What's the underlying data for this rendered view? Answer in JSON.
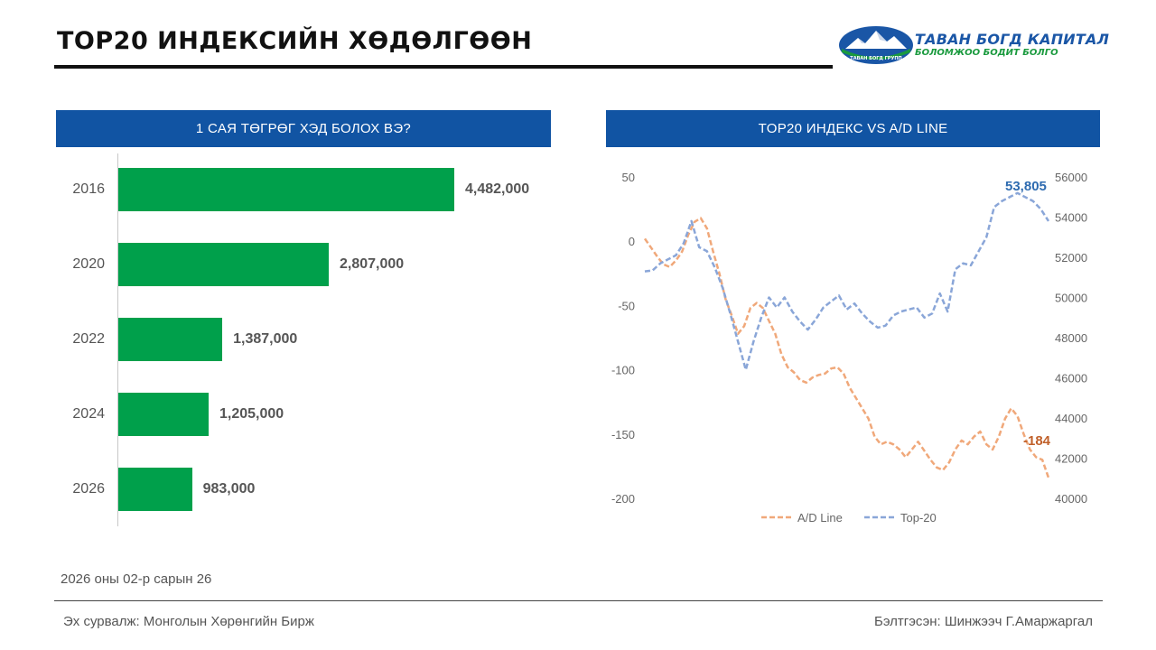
{
  "header": {
    "title": "TOP20 ИНДЕКСИЙН ХӨДӨЛГӨӨН",
    "logo_main": "ТАВАН БОГД КАПИТАЛ",
    "logo_sub": "БОЛОМЖОО БОДИТ БОЛГО",
    "logo_badge": "ТАВАН БОГД ГРУПП"
  },
  "colors": {
    "header_blue": "#1154a3",
    "bar_green": "#00a04b",
    "ad_line": "#f0a87a",
    "top20_line": "#8aa6d8",
    "ad_label": "#c0602a",
    "top20_label": "#2e6bb0"
  },
  "chart_data": [
    {
      "type": "bar",
      "orientation": "horizontal",
      "title": "1 САЯ ТӨГРӨГ ХЭД БОЛОХ ВЭ?",
      "categories": [
        "2016",
        "2020",
        "2022",
        "2024",
        "2026"
      ],
      "values": [
        4482000,
        2807000,
        1387000,
        1205000,
        983000
      ],
      "value_labels": [
        "4,482,000",
        "2,807,000",
        "1,387,000",
        "1,205,000",
        "983,000"
      ],
      "xlim": [
        0,
        4482000
      ]
    },
    {
      "type": "line",
      "title": "TOP20 ИНДЕКС VS A/D LINE",
      "left_axis": {
        "ylim": [
          -200,
          50
        ],
        "ticks": [
          "50",
          "0",
          "-50",
          "-100",
          "-150",
          "-200"
        ]
      },
      "right_axis": {
        "ylim": [
          40000,
          56000
        ],
        "ticks": [
          "56000",
          "54000",
          "52000",
          "50000",
          "48000",
          "46000",
          "44000",
          "42000",
          "40000"
        ]
      },
      "legend": "bottom",
      "series": [
        {
          "name": "A/D Line",
          "axis": "left",
          "style": "dashed",
          "end_label": "-184",
          "values": [
            2,
            -5,
            -12,
            -18,
            -20,
            -15,
            -8,
            5,
            15,
            18,
            10,
            -8,
            -25,
            -45,
            -58,
            -72,
            -66,
            -52,
            -48,
            -52,
            -62,
            -72,
            -88,
            -98,
            -102,
            -108,
            -110,
            -106,
            -104,
            -103,
            -99,
            -98,
            -103,
            -114,
            -122,
            -130,
            -138,
            -152,
            -158,
            -156,
            -158,
            -162,
            -168,
            -162,
            -156,
            -163,
            -170,
            -176,
            -178,
            -172,
            -162,
            -155,
            -158,
            -152,
            -148,
            -158,
            -162,
            -152,
            -138,
            -130,
            -136,
            -150,
            -162,
            -168,
            -170,
            -184
          ]
        },
        {
          "name": "Top-20",
          "axis": "right",
          "style": "dashed",
          "end_label": "53,805",
          "values": [
            51300,
            51350,
            51700,
            51900,
            52100,
            52700,
            53800,
            52500,
            52300,
            51500,
            50500,
            49200,
            47800,
            46400,
            47800,
            49000,
            50000,
            49500,
            50000,
            49300,
            48800,
            48400,
            48900,
            49500,
            49800,
            50100,
            49400,
            49700,
            49200,
            48800,
            48500,
            48600,
            49100,
            49300,
            49400,
            49500,
            49000,
            49200,
            50200,
            49300,
            51400,
            51700,
            51600,
            52300,
            53000,
            54500,
            54800,
            55000,
            55200,
            55000,
            54800,
            54400,
            53800
          ]
        }
      ]
    }
  ],
  "footer": {
    "date": "2026 оны 02-р сарын 26",
    "source": "Эх сурвалж: Монголын Хөрөнгийн Бирж",
    "author": "Бэлтгэсэн: Шинжээч Г.Амаржаргал"
  }
}
